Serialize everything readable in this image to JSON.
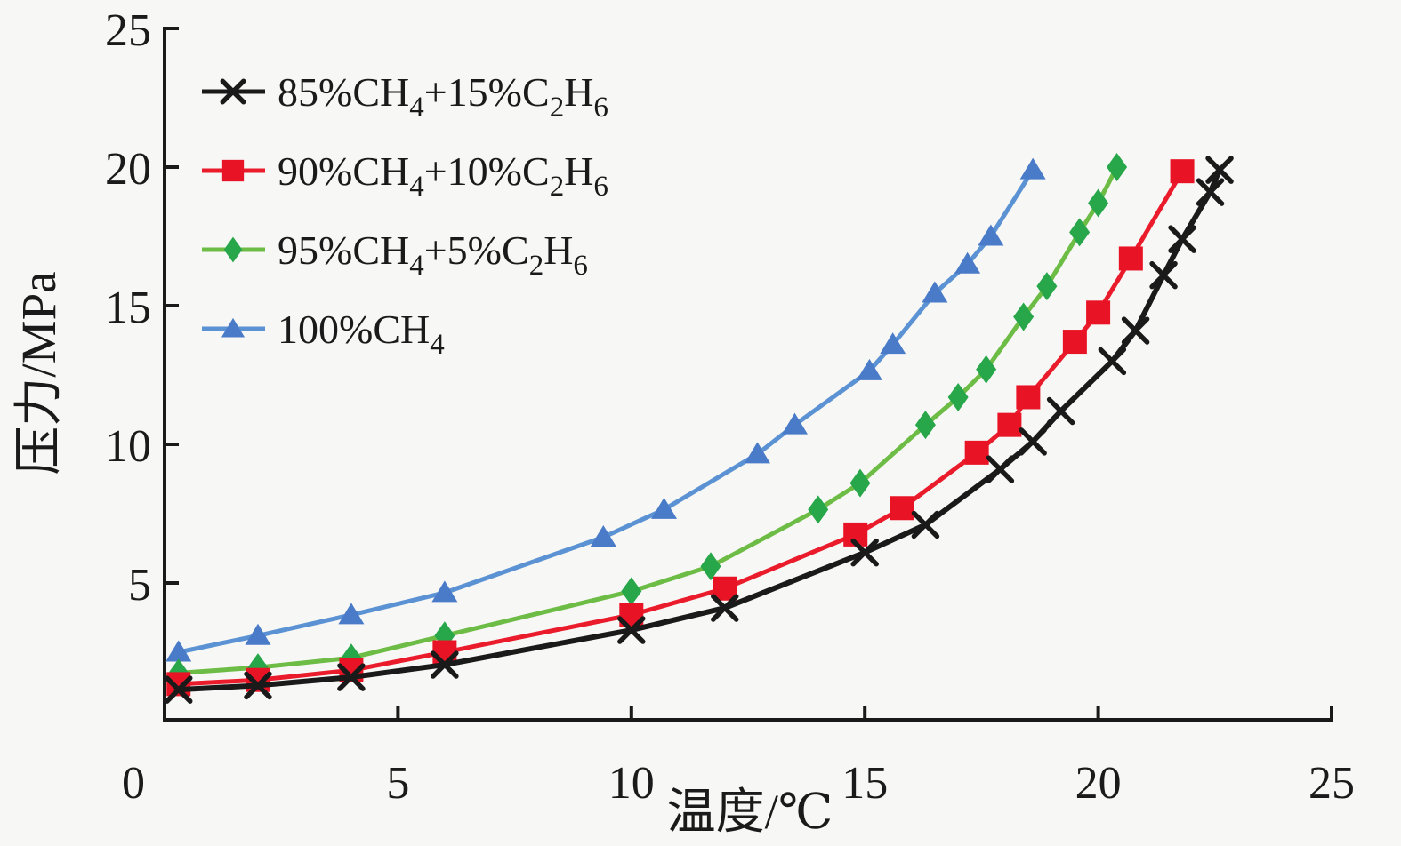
{
  "figure": {
    "background": "#f7f7f5",
    "axis_color": "#1a1a1a",
    "font_color": "#1a1a1a"
  },
  "chart_data": {
    "type": "line",
    "title": "",
    "xlabel": "温度/℃",
    "ylabel": "压力/MPa",
    "xlim": [
      0,
      25
    ],
    "ylim": [
      0,
      25
    ],
    "x_ticks": [
      0,
      5,
      10,
      15,
      20,
      25
    ],
    "y_ticks": [
      5,
      10,
      15,
      20,
      25
    ],
    "grid": false,
    "legend_position": "top-left-inside",
    "series": [
      {
        "name": "85%CH4+15%C2H6",
        "label_tokens": [
          {
            "t": "85%CH"
          },
          {
            "t": "4",
            "sub": true
          },
          {
            "t": "+15%C"
          },
          {
            "t": "2",
            "sub": true
          },
          {
            "t": "H"
          },
          {
            "t": "6",
            "sub": true
          }
        ],
        "marker": "x",
        "line_color": "#1a1a1a",
        "marker_color": "#1a1a1a",
        "line_width": 6,
        "points": [
          [
            0.3,
            1.15
          ],
          [
            2,
            1.3
          ],
          [
            4,
            1.6
          ],
          [
            6,
            2.05
          ],
          [
            10,
            3.3
          ],
          [
            12,
            4.1
          ],
          [
            15,
            6.1
          ],
          [
            16.3,
            7.1
          ],
          [
            17.9,
            9.1
          ],
          [
            18.6,
            10.1
          ],
          [
            19.2,
            11.2
          ],
          [
            20.3,
            13.0
          ],
          [
            20.8,
            14.1
          ],
          [
            21.4,
            16.1
          ],
          [
            21.8,
            17.4
          ],
          [
            22.4,
            19.1
          ],
          [
            22.6,
            19.9
          ]
        ]
      },
      {
        "name": "90%CH4+10%C2H6",
        "label_tokens": [
          {
            "t": "90%CH"
          },
          {
            "t": "4",
            "sub": true
          },
          {
            "t": "+10%C"
          },
          {
            "t": "2",
            "sub": true
          },
          {
            "t": "H"
          },
          {
            "t": "6",
            "sub": true
          }
        ],
        "marker": "square",
        "line_color": "#ea1c2c",
        "marker_color": "#e81425",
        "line_width": 5,
        "points": [
          [
            0.3,
            1.35
          ],
          [
            2,
            1.5
          ],
          [
            4,
            1.85
          ],
          [
            6,
            2.5
          ],
          [
            10,
            3.85
          ],
          [
            12,
            4.8
          ],
          [
            14.8,
            6.75
          ],
          [
            15.8,
            7.7
          ],
          [
            17.4,
            9.7
          ],
          [
            18.1,
            10.7
          ],
          [
            18.5,
            11.7
          ],
          [
            19.5,
            13.7
          ],
          [
            20.0,
            14.75
          ],
          [
            20.7,
            16.7
          ],
          [
            21.8,
            19.85
          ]
        ]
      },
      {
        "name": "95%CH4+5%C2H6",
        "label_tokens": [
          {
            "t": "95%CH"
          },
          {
            "t": "4",
            "sub": true
          },
          {
            "t": "+5%C"
          },
          {
            "t": "2",
            "sub": true
          },
          {
            "t": "H"
          },
          {
            "t": "6",
            "sub": true
          }
        ],
        "marker": "diamond",
        "line_color": "#6cbc45",
        "marker_color": "#27a74a",
        "line_width": 5,
        "points": [
          [
            0.3,
            1.75
          ],
          [
            2,
            1.95
          ],
          [
            4,
            2.3
          ],
          [
            6,
            3.1
          ],
          [
            10,
            4.7
          ],
          [
            11.7,
            5.6
          ],
          [
            14,
            7.65
          ],
          [
            14.9,
            8.6
          ],
          [
            16.3,
            10.7
          ],
          [
            17.0,
            11.7
          ],
          [
            17.6,
            12.7
          ],
          [
            18.4,
            14.6
          ],
          [
            18.9,
            15.7
          ],
          [
            19.6,
            17.65
          ],
          [
            20.0,
            18.7
          ],
          [
            20.4,
            20.0
          ]
        ]
      },
      {
        "name": "100%CH4",
        "label_tokens": [
          {
            "t": "100%CH"
          },
          {
            "t": "4",
            "sub": true
          }
        ],
        "marker": "triangle",
        "line_color": "#5b92d3",
        "marker_color": "#4a7bc8",
        "line_width": 5,
        "points": [
          [
            0.3,
            2.5
          ],
          [
            2,
            3.1
          ],
          [
            4,
            3.85
          ],
          [
            6,
            4.65
          ],
          [
            9.4,
            6.65
          ],
          [
            10.7,
            7.65
          ],
          [
            12.7,
            9.65
          ],
          [
            13.5,
            10.7
          ],
          [
            15.1,
            12.65
          ],
          [
            15.6,
            13.6
          ],
          [
            16.5,
            15.45
          ],
          [
            17.2,
            16.5
          ],
          [
            17.7,
            17.5
          ],
          [
            18.6,
            19.9
          ]
        ]
      }
    ]
  }
}
